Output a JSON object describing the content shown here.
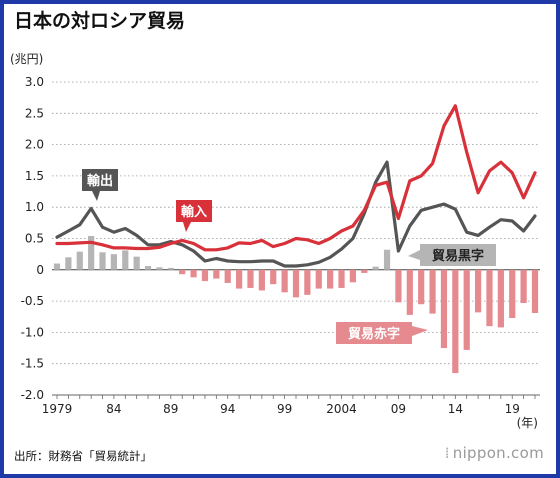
{
  "title": "日本の対ロシア貿易",
  "source": "出所：財務省「貿易統計」",
  "brand": "nippon.com",
  "colors": {
    "export": "#555555",
    "import": "#d8313a",
    "surplus": "#b5b5b5",
    "deficit": "#e58a8f",
    "frame": "#1f3aa8"
  },
  "chart_data": {
    "type": "line",
    "unit_label": "(兆円)",
    "xlabel": "(年)",
    "ylim": [
      -2.0,
      3.0
    ],
    "y_ticks": [
      "3.0",
      "2.5",
      "2.0",
      "1.5",
      "1.0",
      "0.5",
      "0",
      "-0.5",
      "-1.0",
      "-1.5",
      "-2.0"
    ],
    "y_tick_values": [
      3.0,
      2.5,
      2.0,
      1.5,
      1.0,
      0.5,
      0,
      -0.5,
      -1.0,
      -1.5,
      -2.0
    ],
    "x_ticks": [
      "1979",
      "84",
      "89",
      "94",
      "99",
      "2004",
      "09",
      "14",
      "19"
    ],
    "x_tick_years": [
      1979,
      1984,
      1989,
      1994,
      1999,
      2004,
      2009,
      2014,
      2019
    ],
    "years": [
      1979,
      1980,
      1981,
      1982,
      1983,
      1984,
      1985,
      1986,
      1987,
      1988,
      1989,
      1990,
      1991,
      1992,
      1993,
      1994,
      1995,
      1996,
      1997,
      1998,
      1999,
      2000,
      2001,
      2002,
      2003,
      2004,
      2005,
      2006,
      2007,
      2008,
      2009,
      2010,
      2011,
      2012,
      2013,
      2014,
      2015,
      2016,
      2017,
      2018,
      2019,
      2020,
      2021
    ],
    "series": [
      {
        "name": "輸出",
        "key": "export",
        "values": [
          0.52,
          0.62,
          0.72,
          0.98,
          0.68,
          0.6,
          0.66,
          0.55,
          0.4,
          0.4,
          0.45,
          0.4,
          0.3,
          0.14,
          0.18,
          0.14,
          0.13,
          0.13,
          0.14,
          0.14,
          0.06,
          0.06,
          0.08,
          0.12,
          0.2,
          0.33,
          0.5,
          0.9,
          1.4,
          1.72,
          0.3,
          0.7,
          0.95,
          1.0,
          1.05,
          0.97,
          0.6,
          0.55,
          0.68,
          0.8,
          0.78,
          0.62,
          0.86
        ]
      },
      {
        "name": "輸入",
        "key": "import",
        "values": [
          0.42,
          0.42,
          0.43,
          0.44,
          0.4,
          0.35,
          0.35,
          0.34,
          0.34,
          0.36,
          0.42,
          0.47,
          0.42,
          0.32,
          0.32,
          0.35,
          0.43,
          0.42,
          0.47,
          0.37,
          0.42,
          0.5,
          0.48,
          0.42,
          0.5,
          0.62,
          0.7,
          0.95,
          1.35,
          1.4,
          0.82,
          1.42,
          1.5,
          1.7,
          2.3,
          2.62,
          1.88,
          1.23,
          1.58,
          1.72,
          1.55,
          1.15,
          1.55
        ]
      },
      {
        "name": "貿易黒字",
        "key": "balance",
        "values": [
          0.1,
          0.2,
          0.29,
          0.54,
          0.28,
          0.25,
          0.31,
          0.21,
          0.06,
          0.04,
          0.03,
          -0.07,
          -0.12,
          -0.18,
          -0.14,
          -0.21,
          -0.3,
          -0.29,
          -0.33,
          -0.23,
          -0.36,
          -0.44,
          -0.4,
          -0.3,
          -0.3,
          -0.29,
          -0.2,
          -0.05,
          0.05,
          0.32,
          -0.52,
          -0.72,
          -0.55,
          -0.7,
          -1.25,
          -1.65,
          -1.28,
          -0.68,
          -0.9,
          -0.92,
          -0.77,
          -0.53,
          -0.69
        ]
      }
    ],
    "annotations": [
      "輸出",
      "輸入",
      "貿易黒字",
      "貿易赤字"
    ]
  }
}
